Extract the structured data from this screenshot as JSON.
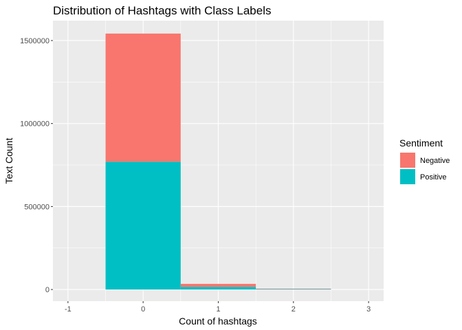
{
  "chart_data": {
    "type": "bar",
    "stacked": true,
    "title": "Distribution of Hashtags with Class Labels",
    "xlabel": "Count of hashtags",
    "ylabel": "Text Count",
    "x_ticks": [
      "-1",
      "0",
      "1",
      "2",
      "3"
    ],
    "y_ticks": [
      "0",
      "500000",
      "1000000",
      "1500000"
    ],
    "xlim": [
      -1.2,
      3.2
    ],
    "ylim": [
      -70000,
      1620000
    ],
    "bar_width": 1,
    "categories": [
      0,
      1,
      2
    ],
    "series": [
      {
        "name": "Negative",
        "color": "#F8766D",
        "values": [
          772000,
          18000,
          2000
        ]
      },
      {
        "name": "Positive",
        "color": "#00BFC4",
        "values": [
          770000,
          16000,
          3000
        ]
      }
    ],
    "legend": {
      "title": "Sentiment",
      "position": "right"
    },
    "panel_background": "#EBEBEB",
    "grid_color": "#FFFFFF",
    "grid": true
  }
}
